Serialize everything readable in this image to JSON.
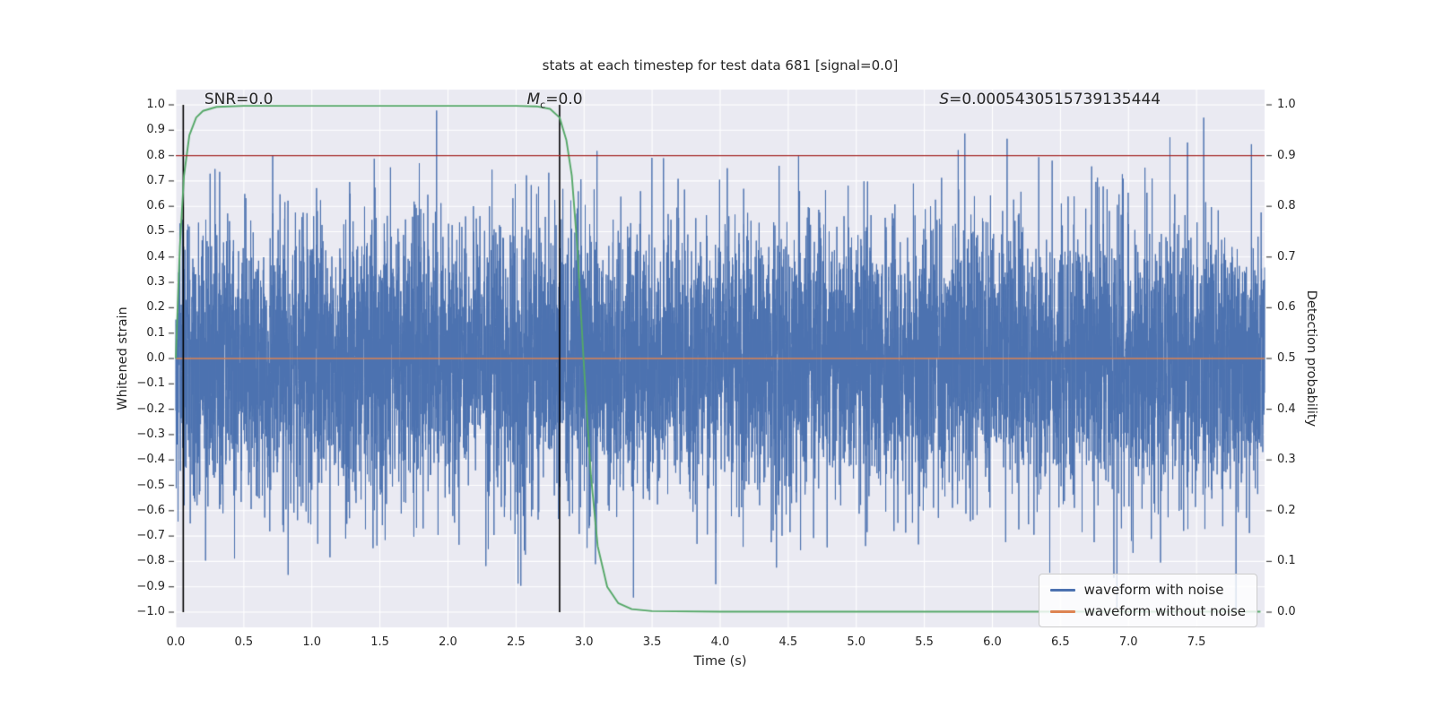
{
  "chart_data": {
    "type": "line",
    "title": "stats at each timestep for test data 681 [signal=0.0]",
    "xlabel": "Time (s)",
    "ylabel_left": "Whitened strain",
    "ylabel_right": "Detection probability",
    "xlim": [
      0,
      8
    ],
    "ylim_left": [
      -1.06,
      1.06
    ],
    "ylim_right": [
      0.0,
      1.0
    ],
    "plot_bg": "#eaeaf2",
    "grid_color": "#ffffff",
    "grid": true,
    "x_ticks": {
      "values": [
        0,
        0.5,
        1,
        1.5,
        2,
        2.5,
        3,
        3.5,
        4,
        4.5,
        5,
        5.5,
        6,
        6.5,
        7,
        7.5
      ],
      "labels": [
        "0.0",
        "0.5",
        "1.0",
        "1.5",
        "2.0",
        "2.5",
        "3.0",
        "3.5",
        "4.0",
        "4.5",
        "5.0",
        "5.5",
        "6.0",
        "6.5",
        "7.0",
        "7.5"
      ]
    },
    "y_ticks_left": {
      "values": [
        1,
        0.9,
        0.8,
        0.7,
        0.6,
        0.5,
        0.4,
        0.3,
        0.2,
        0.1,
        0,
        -0.1,
        -0.2,
        -0.3,
        -0.4,
        -0.5,
        -0.6,
        -0.7,
        -0.8,
        -0.9,
        -1
      ],
      "labels": [
        "1.0",
        "0.9",
        "0.8",
        "0.7",
        "0.6",
        "0.5",
        "0.4",
        "0.3",
        "0.2",
        "0.1",
        "0.0",
        "−0.1",
        "−0.2",
        "−0.3",
        "−0.4",
        "−0.5",
        "−0.6",
        "−0.7",
        "−0.8",
        "−0.9",
        "−1.0"
      ]
    },
    "y_ticks_right": {
      "values": [
        1,
        0.9,
        0.8,
        0.7,
        0.6,
        0.5,
        0.4,
        0.3,
        0.2,
        0.1,
        0
      ],
      "labels": [
        "1.0",
        "0.9",
        "0.8",
        "0.7",
        "0.6",
        "0.5",
        "0.4",
        "0.3",
        "0.2",
        "0.1",
        "0.0"
      ]
    },
    "annotations": [
      {
        "id": "snr",
        "text": "SNR=0.0",
        "x": 0.21,
        "y": 1.02
      },
      {
        "id": "mc",
        "prefix": "M",
        "sub": "c",
        "suffix": "=0.0",
        "x": 2.58,
        "y": 1.02
      },
      {
        "id": "s",
        "prefix": "S",
        "suffix": "=0.0005430515739135444",
        "x": 5.61,
        "y": 1.02
      }
    ],
    "series": [
      {
        "name": "waveform with noise",
        "color": "#4c72b0",
        "axis": "left",
        "kind": "gaussian_noise",
        "seed": 681,
        "n": 8192,
        "sigma": 0.27,
        "clip": [
          -1,
          1
        ]
      },
      {
        "name": "waveform without noise",
        "color": "#dd8452",
        "axis": "left",
        "kind": "constant",
        "value": 0.0
      },
      {
        "name": "detection probability",
        "color": "#55a868",
        "axis": "right",
        "kind": "points",
        "points": [
          [
            0.0,
            0.5
          ],
          [
            0.03,
            0.72
          ],
          [
            0.06,
            0.86
          ],
          [
            0.1,
            0.94
          ],
          [
            0.15,
            0.975
          ],
          [
            0.2,
            0.988
          ],
          [
            0.3,
            0.996
          ],
          [
            0.5,
            0.998
          ],
          [
            1.0,
            0.998
          ],
          [
            1.5,
            0.998
          ],
          [
            2.0,
            0.998
          ],
          [
            2.5,
            0.998
          ],
          [
            2.65,
            0.997
          ],
          [
            2.75,
            0.992
          ],
          [
            2.82,
            0.975
          ],
          [
            2.87,
            0.93
          ],
          [
            2.91,
            0.86
          ],
          [
            2.95,
            0.72
          ],
          [
            3.0,
            0.48
          ],
          [
            3.05,
            0.27
          ],
          [
            3.1,
            0.13
          ],
          [
            3.17,
            0.05
          ],
          [
            3.25,
            0.018
          ],
          [
            3.35,
            0.006
          ],
          [
            3.5,
            0.002
          ],
          [
            4.0,
            0.001
          ],
          [
            7.97,
            0.001
          ]
        ]
      }
    ],
    "threshold": {
      "value": 0.9,
      "axis": "right",
      "color": "#a52727"
    },
    "vlines": [
      {
        "x": 0.055,
        "y0": -1,
        "y1": 1,
        "color": "#000000"
      },
      {
        "x": 2.82,
        "y0": -1,
        "y1": 1,
        "color": "#000000"
      }
    ],
    "legend": {
      "position": "lower right",
      "items": [
        {
          "label": "waveform with noise",
          "color": "#4c72b0"
        },
        {
          "label": "waveform without noise",
          "color": "#dd8452"
        }
      ]
    }
  }
}
